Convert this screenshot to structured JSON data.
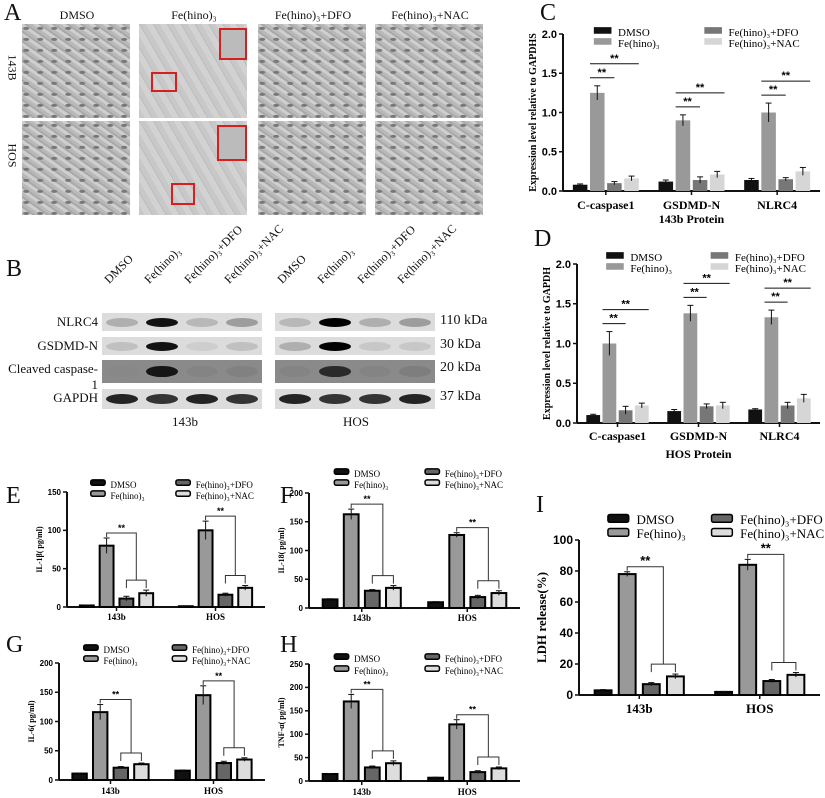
{
  "panel_labels": {
    "A": "A",
    "B": "B",
    "C": "C",
    "D": "D",
    "E": "E",
    "F": "F",
    "G": "G",
    "H": "H",
    "I": "I"
  },
  "micrographs": {
    "columns": [
      "DMSO",
      "Fe(hino)₃",
      "Fe(hino)₃+DFO",
      "Fe(hino)₃+NAC"
    ],
    "rows": [
      "143B",
      "HOS"
    ]
  },
  "western_blot": {
    "lanes": [
      "DMSO",
      "Fe(hino)₃",
      "Fe(hino)₃+DFO",
      "Fe(hino)₃+NAC",
      "DMSO",
      "Fe(hino)₃",
      "Fe(hino)₃+DFO",
      "Fe(hino)₃+NAC"
    ],
    "cell_lines": [
      "143b",
      "HOS"
    ],
    "rows": [
      {
        "protein": "NLRC4",
        "kda": "110 kDa",
        "intensity": [
          0.35,
          0.95,
          0.3,
          0.45,
          0.3,
          1.0,
          0.35,
          0.45
        ]
      },
      {
        "protein": "GSDMD-N",
        "kda": "30 kDa",
        "intensity": [
          0.25,
          0.95,
          0.15,
          0.25,
          0.35,
          1.0,
          0.2,
          0.2
        ]
      },
      {
        "protein": "Cleaved caspase-1",
        "kda": "20 kDa",
        "intensity": [
          0.05,
          0.9,
          0.1,
          0.15,
          0.1,
          0.8,
          0.1,
          0.2
        ]
      },
      {
        "protein": "GAPDH",
        "kda": "37 kDa",
        "intensity": [
          0.9,
          0.85,
          0.9,
          0.85,
          0.9,
          0.85,
          0.85,
          0.9
        ]
      }
    ]
  },
  "chart_data": [
    {
      "panel": "C",
      "type": "bar",
      "categories": [
        "C-caspase1",
        "GSDMD-N",
        "NLRC4"
      ],
      "series": [
        {
          "name": "DMSO",
          "values": [
            0.08,
            0.12,
            0.14
          ],
          "errors": [
            0.01,
            0.02,
            0.02
          ],
          "color": "#111111"
        },
        {
          "name": "Fe(hino)₃",
          "values": [
            1.25,
            0.9,
            1.0
          ],
          "errors": [
            0.09,
            0.07,
            0.12
          ],
          "color": "#999999"
        },
        {
          "name": "Fe(hino)₃+DFO",
          "values": [
            0.1,
            0.14,
            0.15
          ],
          "errors": [
            0.02,
            0.04,
            0.02
          ],
          "color": "#777777"
        },
        {
          "name": "Fe(hino)₃+NAC",
          "values": [
            0.16,
            0.21,
            0.25
          ],
          "errors": [
            0.03,
            0.04,
            0.05
          ],
          "color": "#d6d6d6"
        }
      ],
      "ylim": [
        0,
        2.0
      ],
      "yticks": [
        "0.0",
        "0.5",
        "1.0",
        "1.5",
        "2.0"
      ],
      "ylabel": "Expression level relative to GAPDHS",
      "xlabel": "143b Protein",
      "significance": "**",
      "legend": "top"
    },
    {
      "panel": "D",
      "type": "bar",
      "categories": [
        "C-caspase1",
        "GSDMD-N",
        "NLRC4"
      ],
      "series": [
        {
          "name": "DMSO",
          "values": [
            0.1,
            0.15,
            0.17
          ],
          "errors": [
            0.01,
            0.02,
            0.01
          ],
          "color": "#111111"
        },
        {
          "name": "Fe(hino)₃",
          "values": [
            1.0,
            1.38,
            1.33
          ],
          "errors": [
            0.15,
            0.1,
            0.09
          ],
          "color": "#999999"
        },
        {
          "name": "Fe(hino)₃+DFO",
          "values": [
            0.16,
            0.21,
            0.22
          ],
          "errors": [
            0.05,
            0.03,
            0.04
          ],
          "color": "#777777"
        },
        {
          "name": "Fe(hino)₃+NAC",
          "values": [
            0.22,
            0.22,
            0.31
          ],
          "errors": [
            0.03,
            0.04,
            0.05
          ],
          "color": "#d6d6d6"
        }
      ],
      "ylim": [
        0,
        2.0
      ],
      "yticks": [
        "0.0",
        "0.5",
        "1.0",
        "1.5",
        "2.0"
      ],
      "ylabel": "Expression level relative to GAPDH",
      "xlabel": "HOS Protein",
      "significance": "**",
      "legend": "top"
    },
    {
      "panel": "E",
      "type": "bar",
      "categories": [
        "143b",
        "HOS"
      ],
      "series": [
        {
          "name": "DMSO",
          "values": [
            2,
            1
          ],
          "errors": [
            0.5,
            0.5
          ],
          "color": "#111111"
        },
        {
          "name": "Fe(hino)₃",
          "values": [
            80,
            100
          ],
          "errors": [
            10,
            12
          ],
          "color": "#999999"
        },
        {
          "name": "Fe(hino)₃+DFO",
          "values": [
            11,
            16
          ],
          "errors": [
            3,
            2
          ],
          "color": "#666666"
        },
        {
          "name": "Fe(hino)₃+NAC",
          "values": [
            18,
            25
          ],
          "errors": [
            4,
            3
          ],
          "color": "#dddddd"
        }
      ],
      "ylim": [
        0,
        150
      ],
      "yticks": [
        "0",
        "50",
        "100",
        "150"
      ],
      "ylabel": "IL-1β( pg/ml)",
      "xlabel": "",
      "significance": "**",
      "legend": "top"
    },
    {
      "panel": "F",
      "type": "bar",
      "categories": [
        "143b",
        "HOS"
      ],
      "series": [
        {
          "name": "DMSO",
          "values": [
            15,
            10
          ],
          "errors": [
            1,
            1
          ],
          "color": "#111111"
        },
        {
          "name": "Fe(hino)₃",
          "values": [
            163,
            127
          ],
          "errors": [
            9,
            4
          ],
          "color": "#999999"
        },
        {
          "name": "Fe(hino)₃+DFO",
          "values": [
            30,
            19
          ],
          "errors": [
            2,
            3
          ],
          "color": "#666666"
        },
        {
          "name": "Fe(hino)₃+NAC",
          "values": [
            35,
            26
          ],
          "errors": [
            4,
            4
          ],
          "color": "#dddddd"
        }
      ],
      "ylim": [
        0,
        200
      ],
      "yticks": [
        "0",
        "50",
        "100",
        "150",
        "200"
      ],
      "ylabel": "IL-18( pg/ml)",
      "xlabel": "",
      "significance": "**",
      "legend": "top"
    },
    {
      "panel": "G",
      "type": "bar",
      "categories": [
        "143b",
        "HOS"
      ],
      "series": [
        {
          "name": "DMSO",
          "values": [
            11,
            16
          ],
          "errors": [
            1,
            1
          ],
          "color": "#111111"
        },
        {
          "name": "Fe(hino)₃",
          "values": [
            116,
            145
          ],
          "errors": [
            13,
            16
          ],
          "color": "#999999"
        },
        {
          "name": "Fe(hino)₃+DFO",
          "values": [
            21,
            29
          ],
          "errors": [
            2,
            3
          ],
          "color": "#666666"
        },
        {
          "name": "Fe(hino)₃+NAC",
          "values": [
            27,
            35
          ],
          "errors": [
            2,
            3
          ],
          "color": "#dddddd"
        }
      ],
      "ylim": [
        0,
        200
      ],
      "yticks": [
        "0",
        "50",
        "100",
        "150",
        "200"
      ],
      "ylabel": "IL-6( pg/ml)",
      "xlabel": "",
      "significance": "**",
      "legend": "top"
    },
    {
      "panel": "H",
      "type": "bar",
      "categories": [
        "143b",
        "HOS"
      ],
      "series": [
        {
          "name": "DMSO",
          "values": [
            15,
            7
          ],
          "errors": [
            1,
            1
          ],
          "color": "#111111"
        },
        {
          "name": "Fe(hino)₃",
          "values": [
            170,
            121
          ],
          "errors": [
            15,
            10
          ],
          "color": "#999999"
        },
        {
          "name": "Fe(hino)₃+DFO",
          "values": [
            29,
            19
          ],
          "errors": [
            3,
            3
          ],
          "color": "#666666"
        },
        {
          "name": "Fe(hino)₃+NAC",
          "values": [
            38,
            27
          ],
          "errors": [
            5,
            3
          ],
          "color": "#dddddd"
        }
      ],
      "ylim": [
        0,
        250
      ],
      "yticks": [
        "0",
        "50",
        "100",
        "150",
        "200",
        "250"
      ],
      "ylabel": "TNF-α( pg/ml)",
      "xlabel": "",
      "significance": "**",
      "legend": "top"
    },
    {
      "panel": "I",
      "type": "bar",
      "categories": [
        "143b",
        "HOS"
      ],
      "series": [
        {
          "name": "DMSO",
          "values": [
            3,
            2
          ],
          "errors": [
            0.5,
            0.3
          ],
          "color": "#111111"
        },
        {
          "name": "Fe(hino)₃",
          "values": [
            78,
            84
          ],
          "errors": [
            1.5,
            3.5
          ],
          "color": "#999999"
        },
        {
          "name": "Fe(hino)₃+DFO",
          "values": [
            7,
            9
          ],
          "errors": [
            1,
            1
          ],
          "color": "#666666"
        },
        {
          "name": "Fe(hino)₃+NAC",
          "values": [
            12,
            13
          ],
          "errors": [
            1.5,
            1.5
          ],
          "color": "#dddddd"
        }
      ],
      "ylim": [
        0,
        100
      ],
      "yticks": [
        "0",
        "20",
        "40",
        "60",
        "80",
        "100"
      ],
      "ylabel": "LDH  release(%)",
      "xlabel": "",
      "significance": "**",
      "legend": "top"
    }
  ]
}
